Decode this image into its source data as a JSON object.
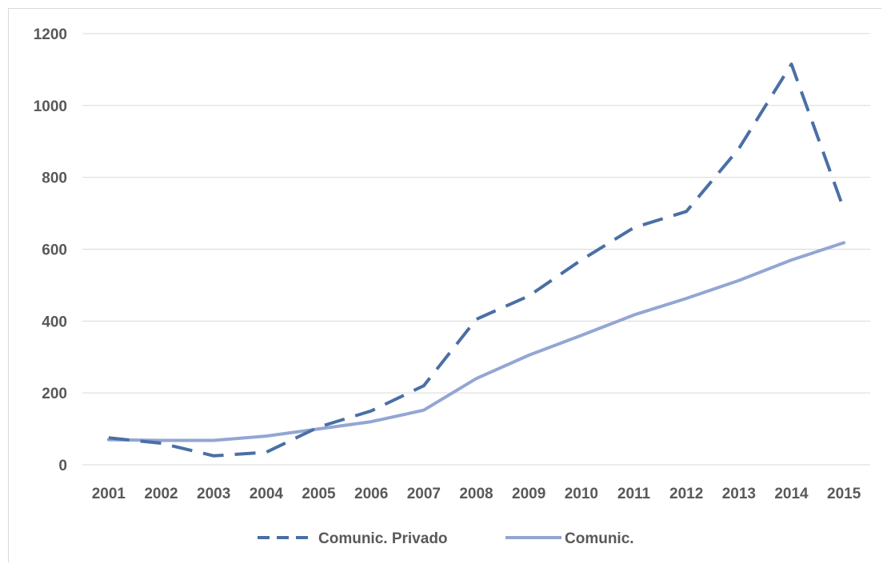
{
  "chart_data": {
    "type": "line",
    "title": "",
    "xlabel": "",
    "ylabel": "",
    "categories": [
      "2001",
      "2002",
      "2003",
      "2004",
      "2005",
      "2006",
      "2007",
      "2008",
      "2009",
      "2010",
      "2011",
      "2012",
      "2013",
      "2014",
      "2015"
    ],
    "ylim": [
      0,
      1200
    ],
    "yticks": [
      0,
      200,
      400,
      600,
      800,
      1000,
      1200
    ],
    "grid": true,
    "legend_position": "bottom",
    "series": [
      {
        "name": "Comunic. Privado",
        "style": "dashed",
        "color": "#4a6fa5",
        "values": [
          75,
          60,
          25,
          35,
          105,
          150,
          220,
          405,
          470,
          570,
          660,
          705,
          880,
          1115,
          710
        ]
      },
      {
        "name": "Comunic.",
        "style": "solid",
        "color": "#93a6d3",
        "values": [
          70,
          68,
          68,
          80,
          100,
          120,
          152,
          240,
          305,
          360,
          417,
          463,
          513,
          570,
          618
        ]
      }
    ]
  }
}
